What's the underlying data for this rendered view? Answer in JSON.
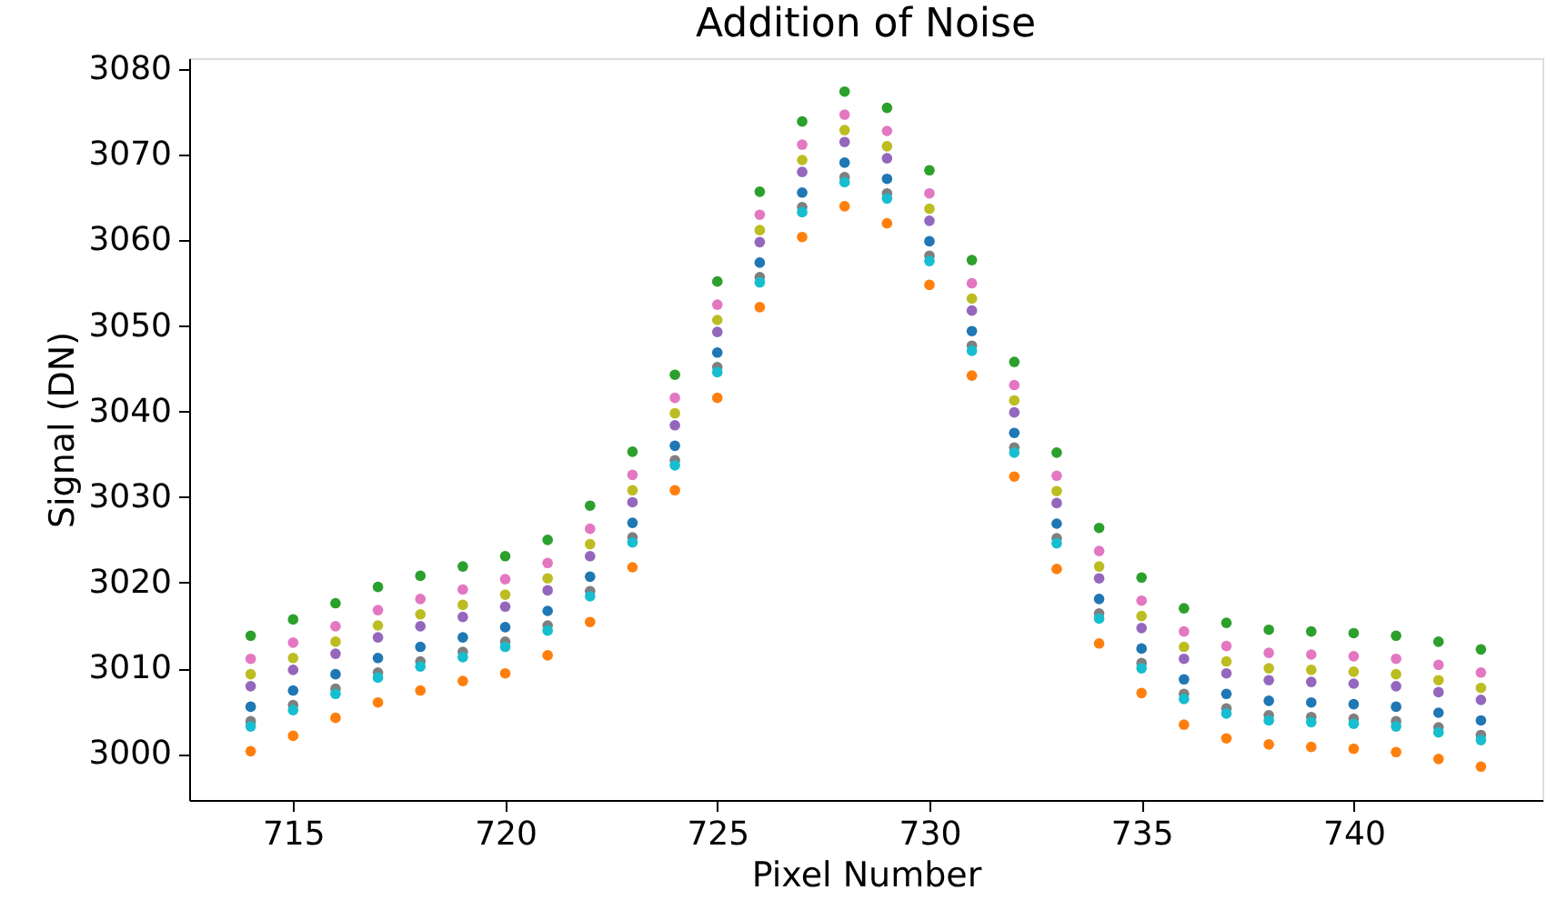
{
  "chart_data": {
    "type": "scatter",
    "title": "Addition of Noise",
    "xlabel": "Pixel Number",
    "ylabel": "Signal (DN)",
    "x": [
      714,
      715,
      716,
      717,
      718,
      719,
      720,
      721,
      722,
      723,
      724,
      725,
      726,
      727,
      728,
      729,
      730,
      731,
      732,
      733,
      734,
      735,
      736,
      737,
      738,
      739,
      740,
      741,
      742,
      743
    ],
    "xlim": [
      712.55,
      744.45
    ],
    "xticks": [
      715,
      720,
      725,
      730,
      735,
      740
    ],
    "ylim": [
      2994.6,
      3081.3
    ],
    "yticks": [
      3000,
      3010,
      3020,
      3030,
      3040,
      3050,
      3060,
      3070,
      3080
    ],
    "grid": false,
    "legend": false,
    "marker": "circle",
    "series": [
      {
        "color": "#1f77b4",
        "values": [
          3005.5,
          3007.4,
          3009.3,
          3011.2,
          3012.5,
          3013.6,
          3014.8,
          3016.7,
          3020.7,
          3027.0,
          3036.0,
          3046.9,
          3057.4,
          3065.6,
          3069.1,
          3067.2,
          3059.9,
          3049.4,
          3037.5,
          3026.9,
          3018.1,
          3012.3,
          3008.7,
          3007.0,
          3006.2,
          3006.0,
          3005.8,
          3005.5,
          3004.8,
          3003.9
        ]
      },
      {
        "color": "#ff7f0e",
        "values": [
          3000.3,
          3002.1,
          3004.2,
          3006.0,
          3007.4,
          3008.5,
          3009.4,
          3011.5,
          3015.4,
          3021.8,
          3030.8,
          3041.6,
          3052.2,
          3060.4,
          3064.0,
          3062.0,
          3054.8,
          3044.2,
          3032.4,
          3021.6,
          3012.9,
          3007.1,
          3003.4,
          3001.8,
          3001.1,
          3000.8,
          3000.6,
          3000.2,
          2999.4,
          2998.5
        ]
      },
      {
        "color": "#2ca02c",
        "values": [
          3013.8,
          3015.7,
          3017.6,
          3019.5,
          3020.8,
          3021.9,
          3023.1,
          3025.0,
          3029.0,
          3035.3,
          3044.3,
          3055.2,
          3065.7,
          3073.9,
          3077.4,
          3075.5,
          3068.2,
          3057.7,
          3045.8,
          3035.2,
          3026.4,
          3020.6,
          3017.0,
          3015.3,
          3014.5,
          3014.3,
          3014.1,
          3013.8,
          3013.1,
          3012.2
        ]
      },
      {
        "color": "#9467bd",
        "values": [
          3007.9,
          3009.8,
          3011.7,
          3013.6,
          3014.9,
          3016.0,
          3017.2,
          3019.1,
          3023.1,
          3029.4,
          3038.4,
          3049.3,
          3059.8,
          3068.0,
          3071.5,
          3069.6,
          3062.3,
          3051.8,
          3039.9,
          3029.3,
          3020.5,
          3014.7,
          3011.1,
          3009.4,
          3008.6,
          3008.4,
          3008.2,
          3007.9,
          3007.2,
          3006.3
        ]
      },
      {
        "color": "#e377c2",
        "values": [
          3011.1,
          3013.0,
          3014.9,
          3016.8,
          3018.1,
          3019.2,
          3020.4,
          3022.3,
          3026.3,
          3032.6,
          3041.6,
          3052.5,
          3063.0,
          3071.2,
          3074.7,
          3072.8,
          3065.5,
          3055.0,
          3043.1,
          3032.5,
          3023.7,
          3017.9,
          3014.3,
          3012.6,
          3011.8,
          3011.6,
          3011.4,
          3011.1,
          3010.4,
          3009.5
        ]
      },
      {
        "color": "#7f7f7f",
        "values": [
          3003.8,
          3005.7,
          3007.6,
          3009.5,
          3010.8,
          3011.9,
          3013.1,
          3015.0,
          3019.0,
          3025.3,
          3034.3,
          3045.2,
          3055.7,
          3063.9,
          3067.4,
          3065.5,
          3058.2,
          3047.7,
          3035.8,
          3025.2,
          3016.4,
          3010.6,
          3007.0,
          3005.3,
          3004.5,
          3004.3,
          3004.1,
          3003.8,
          3003.1,
          3002.2
        ]
      },
      {
        "color": "#bcbd22",
        "values": [
          3009.3,
          3011.2,
          3013.1,
          3015.0,
          3016.3,
          3017.4,
          3018.6,
          3020.5,
          3024.5,
          3030.8,
          3039.8,
          3050.7,
          3061.2,
          3069.4,
          3072.9,
          3071.0,
          3063.7,
          3053.2,
          3041.3,
          3030.7,
          3021.9,
          3016.1,
          3012.5,
          3010.8,
          3010.0,
          3009.8,
          3009.6,
          3009.3,
          3008.6,
          3007.7
        ]
      },
      {
        "color": "#17becf",
        "values": [
          3003.2,
          3005.1,
          3007.0,
          3008.9,
          3010.2,
          3011.3,
          3012.5,
          3014.4,
          3018.4,
          3024.7,
          3033.7,
          3044.6,
          3055.1,
          3063.3,
          3066.8,
          3064.9,
          3057.6,
          3047.1,
          3035.2,
          3024.6,
          3015.8,
          3010.0,
          3006.4,
          3004.7,
          3003.9,
          3003.7,
          3003.5,
          3003.2,
          3002.5,
          3001.6
        ]
      }
    ]
  }
}
